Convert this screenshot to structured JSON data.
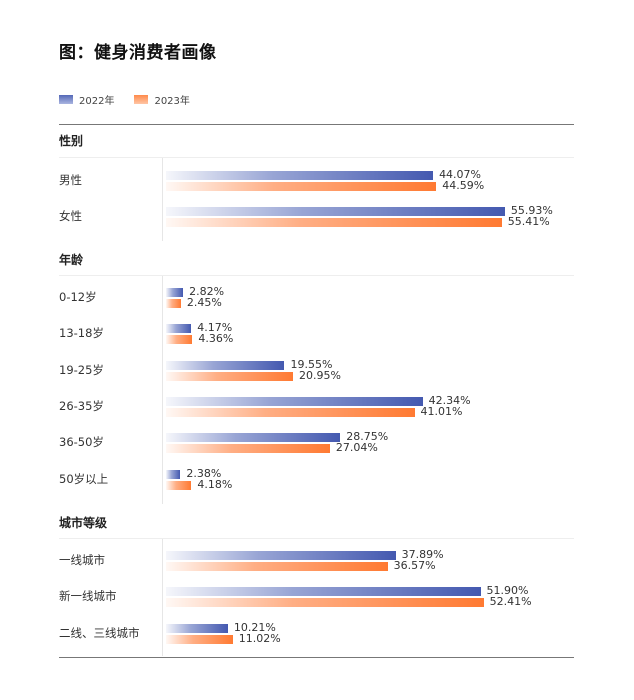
{
  "title": "图：健身消费者画像",
  "legend": [
    {
      "label": "2022年",
      "color": "#4459b0"
    },
    {
      "label": "2023年",
      "color": "#ff7a32"
    }
  ],
  "sections": [
    {
      "heading": "性别",
      "rows": [
        {
          "label": "男性",
          "v2022": "44.07%",
          "v2023": "44.59%"
        },
        {
          "label": "女性",
          "v2022": "55.93%",
          "v2023": "55.41%"
        }
      ]
    },
    {
      "heading": "年龄",
      "rows": [
        {
          "label": "0-12岁",
          "v2022": "2.82%",
          "v2023": "2.45%"
        },
        {
          "label": "13-18岁",
          "v2022": "4.17%",
          "v2023": "4.36%"
        },
        {
          "label": "19-25岁",
          "v2022": "19.55%",
          "v2023": "20.95%"
        },
        {
          "label": "26-35岁",
          "v2022": "42.34%",
          "v2023": "41.01%"
        },
        {
          "label": "36-50岁",
          "v2022": "28.75%",
          "v2023": "27.04%"
        },
        {
          "label": "50岁以上",
          "v2022": "2.38%",
          "v2023": "4.18%"
        }
      ]
    },
    {
      "heading": "城市等级",
      "rows": [
        {
          "label": "一线城市",
          "v2022": "37.89%",
          "v2023": "36.57%"
        },
        {
          "label": "新一线城市",
          "v2022": "51.90%",
          "v2023": "52.41%"
        },
        {
          "label": "二线、三线城市",
          "v2022": "10.21%",
          "v2023": "11.02%"
        }
      ]
    }
  ],
  "chart_data": {
    "type": "bar",
    "orientation": "horizontal",
    "title": "图：健身消费者画像",
    "legend_position": "top-left",
    "groups": [
      {
        "name": "性别",
        "categories": [
          "男性",
          "女性"
        ],
        "series": [
          {
            "name": "2022年",
            "values": [
              44.07,
              55.93
            ]
          },
          {
            "name": "2023年",
            "values": [
              44.59,
              55.41
            ]
          }
        ]
      },
      {
        "name": "年龄",
        "categories": [
          "0-12岁",
          "13-18岁",
          "19-25岁",
          "26-35岁",
          "36-50岁",
          "50岁以上"
        ],
        "series": [
          {
            "name": "2022年",
            "values": [
              2.82,
              4.17,
              19.55,
              42.34,
              28.75,
              2.38
            ]
          },
          {
            "name": "2023年",
            "values": [
              2.45,
              4.36,
              20.95,
              41.01,
              27.04,
              4.18
            ]
          }
        ]
      },
      {
        "name": "城市等级",
        "categories": [
          "一线城市",
          "新一线城市",
          "二线、三线城市"
        ],
        "series": [
          {
            "name": "2022年",
            "values": [
              37.89,
              51.9,
              10.21
            ]
          },
          {
            "name": "2023年",
            "values": [
              36.57,
              52.41,
              11.02
            ]
          }
        ]
      }
    ],
    "unit": "%",
    "xlim": [
      0,
      60
    ],
    "grid": false
  }
}
